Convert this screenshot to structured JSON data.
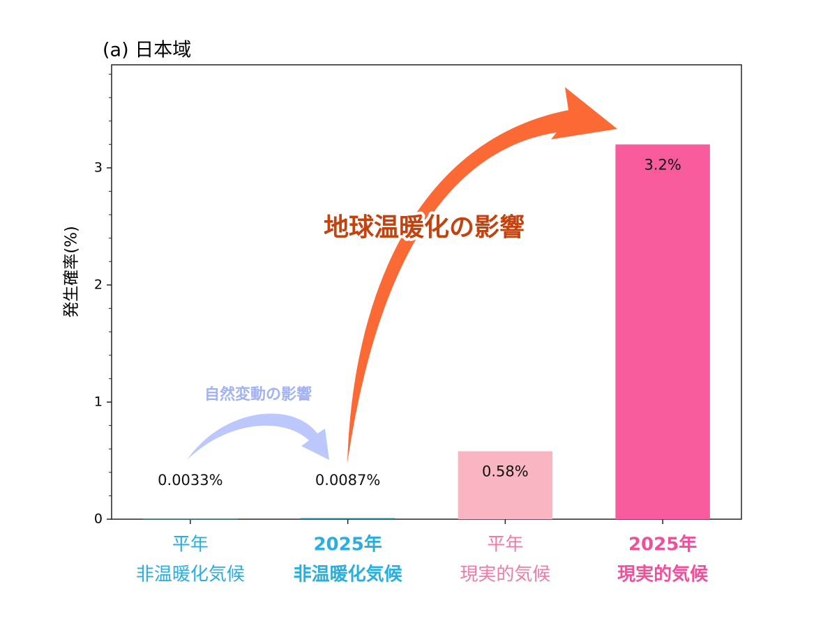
{
  "chart_data": {
    "type": "bar",
    "title": "(a) 日本域",
    "y_label": "発生確率(%)",
    "categories": [
      [
        "平年",
        "非温暖化気候"
      ],
      [
        "2025年",
        "非温暖化気候"
      ],
      [
        "平年",
        "現実的気候"
      ],
      [
        "2025年",
        "現実的気候"
      ]
    ],
    "category_colors": [
      "#29aee0",
      "#29aee0",
      "#f07aa8",
      "#f0509a"
    ],
    "category_bold": [
      false,
      true,
      false,
      true
    ],
    "values": [
      0.0033,
      0.0087,
      0.58,
      3.2
    ],
    "value_labels": [
      "0.0033%",
      "0.0087%",
      "0.58%",
      "3.2%"
    ],
    "colors": [
      "#1a7fa0",
      "#1a7fa0",
      "#fab5c3",
      "#f75b9b"
    ],
    "ylim": [
      0,
      3.88
    ],
    "yticks": [
      0,
      1,
      2,
      3
    ],
    "yminorticks": [
      0.2,
      0.4,
      0.6,
      0.8,
      1.2,
      1.4,
      1.6,
      1.8,
      2.2,
      2.4,
      2.6,
      2.8,
      3.2,
      3.4,
      3.6,
      3.8
    ],
    "annotations": [
      "地球温暖化の影響",
      "自然変動の影響"
    ]
  }
}
